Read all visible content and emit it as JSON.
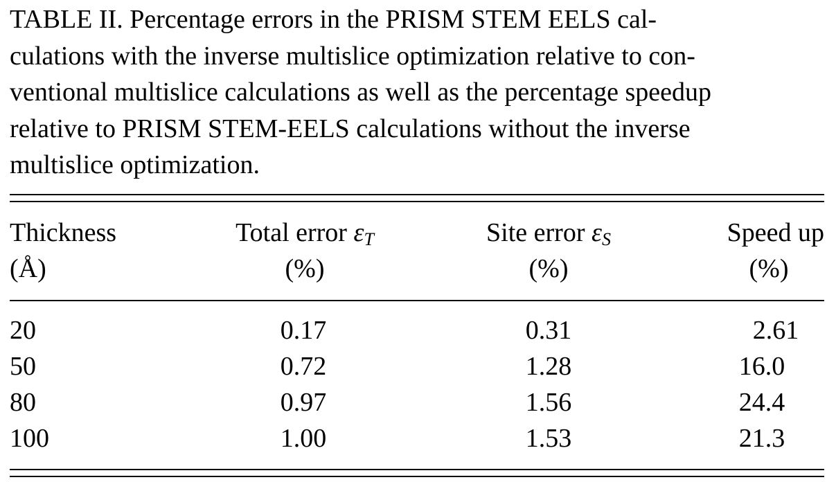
{
  "caption": {
    "line1": "TABLE II. Percentage errors in the PRISM STEM EELS cal-",
    "line2": "culations with the inverse multislice optimization relative to con-",
    "line3": "ventional multislice calculations as well as the percentage speedup",
    "line4": "relative to PRISM STEM-EELS calculations without the inverse",
    "line5": "multislice optimization."
  },
  "table": {
    "headers": {
      "thickness": {
        "line1": "Thickness",
        "line2": "(Å)"
      },
      "total_error": {
        "label": "Total error",
        "symbol": "ε",
        "subscript": "T",
        "unit": "(%)"
      },
      "site_error": {
        "label": "Site error",
        "symbol": "ε",
        "subscript": "S",
        "unit": "(%)"
      },
      "speed_up": {
        "line1": "Speed up",
        "unit": "(%)"
      }
    },
    "rows": [
      {
        "thickness": "20",
        "total_error": "0.17",
        "site_error": "0.31",
        "speed_up": "2.61"
      },
      {
        "thickness": "50",
        "total_error": "0.72",
        "site_error": "1.28",
        "speed_up": "16.0"
      },
      {
        "thickness": "80",
        "total_error": "0.97",
        "site_error": "1.56",
        "speed_up": "24.4"
      },
      {
        "thickness": "100",
        "total_error": "1.00",
        "site_error": "1.53",
        "speed_up": "21.3"
      }
    ]
  }
}
